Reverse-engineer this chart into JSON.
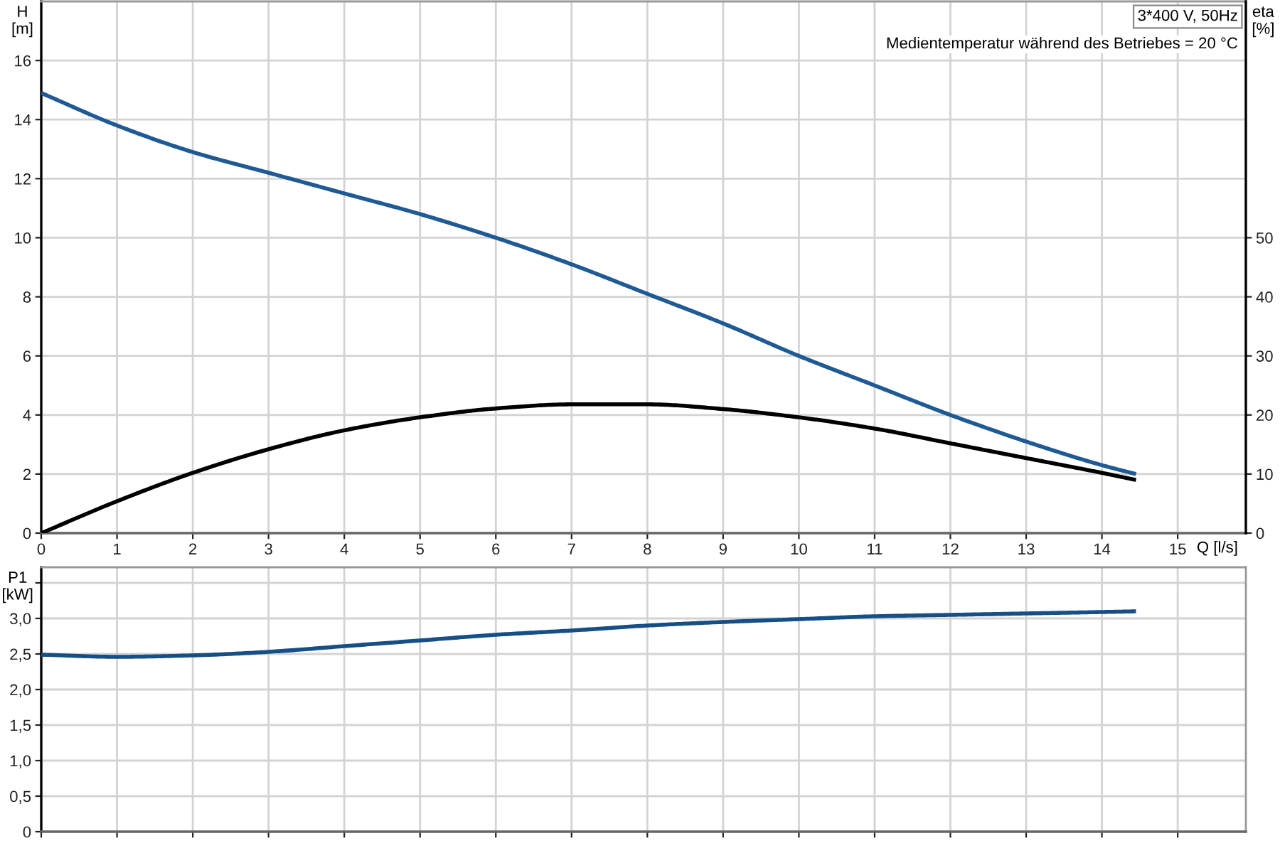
{
  "chart_data": [
    {
      "type": "line",
      "ylabel": "H\n[m]",
      "y2label": "eta\n[%]",
      "xlabel": "Q [l/s]",
      "annotations": [
        "3*400 V, 50Hz",
        "Medientemperatur während des Betriebes = 20 °C"
      ],
      "x": [
        0,
        1,
        2,
        3,
        4,
        5,
        6,
        7,
        8,
        9,
        10,
        11,
        12,
        13,
        14,
        14.45
      ],
      "series": [
        {
          "color": "#1f5a94",
          "values": [
            14.9,
            13.8,
            12.9,
            12.2,
            11.5,
            10.8,
            10.0,
            9.1,
            8.1,
            7.1,
            6.0,
            5.0,
            4.0,
            3.1,
            2.3,
            2.0
          ]
        },
        {
          "color": "#000000",
          "axis": "y2",
          "values": [
            0,
            5.4,
            10.2,
            14.2,
            17.4,
            19.6,
            21.1,
            21.8,
            21.8,
            21.0,
            19.6,
            17.7,
            15.2,
            12.7,
            10.2,
            9.0
          ]
        }
      ],
      "xlim": [
        0,
        15.9
      ],
      "xticks": [
        0,
        1,
        2,
        3,
        4,
        5,
        6,
        7,
        8,
        9,
        10,
        11,
        12,
        13,
        14,
        15
      ],
      "ylim": [
        0,
        18
      ],
      "yticks": [
        0,
        2,
        4,
        6,
        8,
        10,
        12,
        14,
        16
      ],
      "y2lim": [
        0,
        90
      ],
      "y2ticks": [
        0,
        10,
        20,
        30,
        40,
        50
      ],
      "grid": true
    },
    {
      "type": "line",
      "ylabel": "P1\n[kW]",
      "x": [
        0,
        1,
        2,
        3,
        4,
        5,
        6,
        7,
        8,
        9,
        10,
        11,
        12,
        13,
        14,
        14.45
      ],
      "series": [
        {
          "color": "#164f85",
          "values": [
            2.49,
            2.46,
            2.48,
            2.53,
            2.61,
            2.69,
            2.77,
            2.83,
            2.9,
            2.95,
            2.99,
            3.03,
            3.05,
            3.07,
            3.09,
            3.1
          ]
        }
      ],
      "xlim": [
        0,
        15.9
      ],
      "xticks": [
        0,
        1,
        2,
        3,
        4,
        5,
        6,
        7,
        8,
        9,
        10,
        11,
        12,
        13,
        14,
        15
      ],
      "ylim": [
        0,
        3.72
      ],
      "yticks": [
        0,
        {
          "value": 0.5,
          "label": "0,5"
        },
        {
          "value": 1.0,
          "label": "1,0"
        },
        {
          "value": 1.5,
          "label": "1,5"
        },
        {
          "value": 2.0,
          "label": "2,0"
        },
        {
          "value": 2.5,
          "label": "2,5"
        },
        {
          "value": 3.0,
          "label": "3,0"
        },
        {
          "value": 3.5,
          "label": null
        }
      ],
      "grid": true,
      "tick_labels": "y"
    }
  ]
}
